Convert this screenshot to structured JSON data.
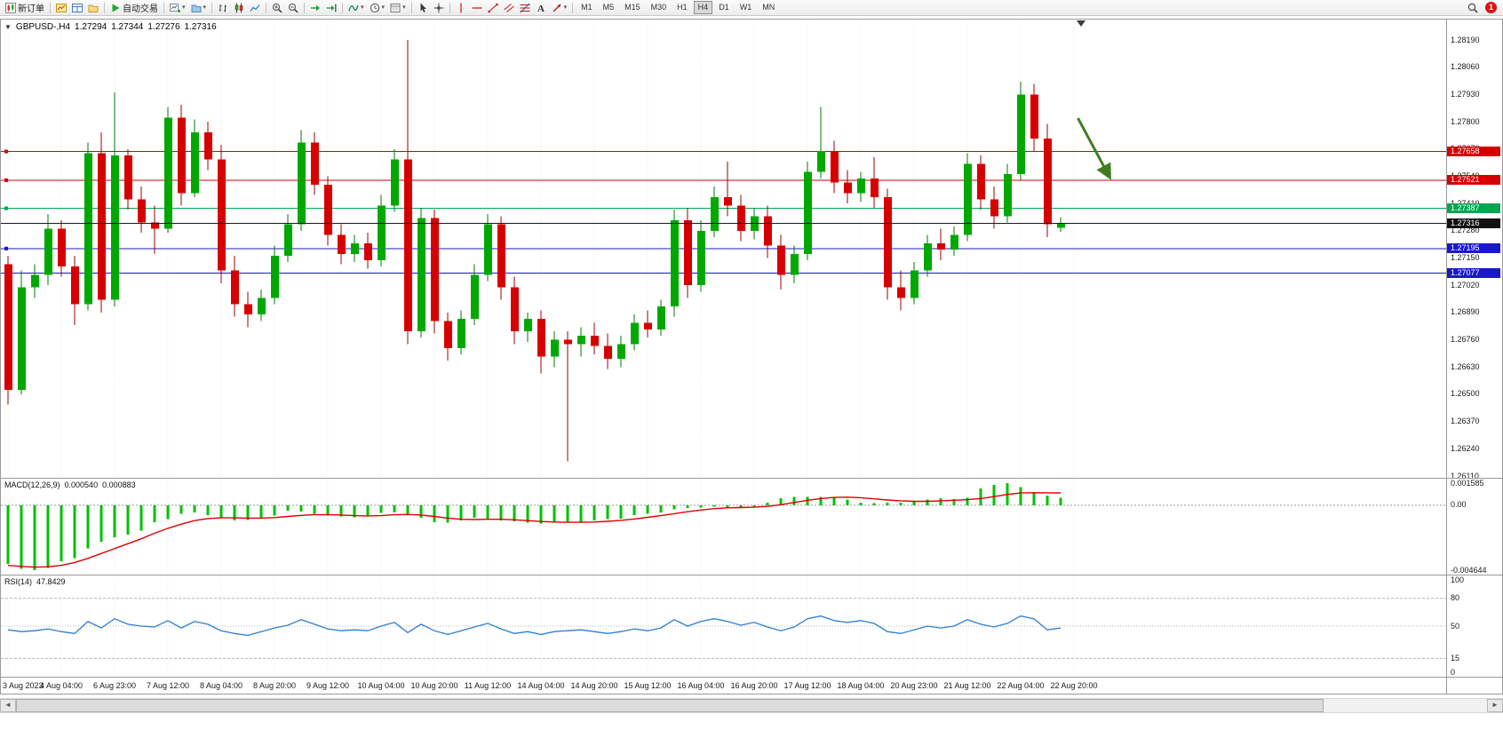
{
  "toolbar": {
    "items": [
      {
        "kind": "button",
        "name": "new-order-button",
        "icon": "new-order-icon",
        "label": "新订单"
      },
      {
        "kind": "sep"
      },
      {
        "kind": "button",
        "name": "market-watch-button",
        "icon": "market-watch-icon"
      },
      {
        "kind": "button",
        "name": "data-window-button",
        "icon": "data-window-icon"
      },
      {
        "kind": "button",
        "name": "navigator-button",
        "icon": "navigator-icon"
      },
      {
        "kind": "sep"
      },
      {
        "kind": "button",
        "name": "auto-trading-button",
        "icon": "auto-trading-icon",
        "label": "自动交易"
      },
      {
        "kind": "sep"
      },
      {
        "kind": "button",
        "name": "new-chart-button",
        "icon": "new-chart-icon",
        "caret": true
      },
      {
        "kind": "button",
        "name": "profiles-button",
        "icon": "profiles-icon",
        "caret": true
      },
      {
        "kind": "sep"
      },
      {
        "kind": "button",
        "name": "bar-chart-button",
        "icon": "bars-icon"
      },
      {
        "kind": "button",
        "name": "candlestick-chart-button",
        "icon": "candles-icon"
      },
      {
        "kind": "button",
        "name": "line-chart-button",
        "icon": "line-chart-icon"
      },
      {
        "kind": "sep"
      },
      {
        "kind": "button",
        "name": "zoom-in-button",
        "icon": "zoom-in-icon"
      },
      {
        "kind": "button",
        "name": "zoom-out-button",
        "icon": "zoom-out-icon"
      },
      {
        "kind": "sep"
      },
      {
        "kind": "button",
        "name": "auto-scroll-button",
        "icon": "auto-scroll-icon"
      },
      {
        "kind": "button",
        "name": "chart-shift-button",
        "icon": "chart-shift-icon"
      },
      {
        "kind": "sep"
      },
      {
        "kind": "button",
        "name": "indicators-button",
        "icon": "indicators-icon",
        "caret": true
      },
      {
        "kind": "button",
        "name": "periods-button",
        "icon": "periods-icon",
        "caret": true
      },
      {
        "kind": "button",
        "name": "templates-button",
        "icon": "templates-icon",
        "caret": true
      },
      {
        "kind": "sep"
      },
      {
        "kind": "button",
        "name": "cursor-button",
        "icon": "cursor-icon"
      },
      {
        "kind": "button",
        "name": "crosshair-button",
        "icon": "crosshair-icon"
      },
      {
        "kind": "sep"
      },
      {
        "kind": "button",
        "name": "vertical-line-button",
        "icon": "vertical-line-icon"
      },
      {
        "kind": "button",
        "name": "horizontal-line-button",
        "icon": "horizontal-line-icon"
      },
      {
        "kind": "button",
        "name": "trendline-button",
        "icon": "trendline-icon"
      },
      {
        "kind": "button",
        "name": "equidistant-channel-button",
        "icon": "channel-icon"
      },
      {
        "kind": "button",
        "name": "fibonacci-button",
        "icon": "fibonacci-icon"
      },
      {
        "kind": "button",
        "name": "text-button",
        "icon": "text-icon"
      },
      {
        "kind": "button",
        "name": "arrows-button",
        "icon": "arrows-icon",
        "caret": true
      },
      {
        "kind": "sep"
      }
    ],
    "timeframes": [
      "M1",
      "M5",
      "M15",
      "M30",
      "H1",
      "H4",
      "D1",
      "W1",
      "MN"
    ],
    "active_timeframe": "H4",
    "notification_count": "1"
  },
  "chart": {
    "header": {
      "collapse_arrow": "▼",
      "symbol": "GBPUSD-,H4",
      "open": "1.27294",
      "high": "1.27344",
      "low": "1.27276",
      "close": "1.27316"
    }
  },
  "scrollbar": {
    "left_arrow": "◄",
    "right_arrow": "►"
  },
  "chart_data": {
    "type": "candlestick",
    "symbol": "GBPUSD-",
    "timeframe": "H4",
    "colors": {
      "up": "#00a800",
      "up_dark": "#007a00",
      "down": "#d60000",
      "down_dark": "#9c0000",
      "grid": "#ececec",
      "bid_line": "#1a1a1a"
    },
    "y_axis": {
      "ticks": [
        "1.28190",
        "1.28060",
        "1.27930",
        "1.27800",
        "1.27670",
        "1.27540",
        "1.27410",
        "1.27280",
        "1.27150",
        "1.27020",
        "1.26890",
        "1.26760",
        "1.26630",
        "1.26500",
        "1.26370",
        "1.26240",
        "1.26110"
      ]
    },
    "x_labels": [
      "3 Aug 2023",
      "4 Aug 04:00",
      "6 Aug 23:00",
      "7 Aug 12:00",
      "8 Aug 04:00",
      "8 Aug 20:00",
      "9 Aug 12:00",
      "10 Aug 04:00",
      "10 Aug 20:00",
      "11 Aug 12:00",
      "14 Aug 04:00",
      "14 Aug 20:00",
      "15 Aug 12:00",
      "16 Aug 04:00",
      "16 Aug 20:00",
      "17 Aug 12:00",
      "18 Aug 04:00",
      "20 Aug 23:00",
      "21 Aug 12:00",
      "22 Aug 04:00",
      "22 Aug 20:00"
    ],
    "current_price": 1.27316,
    "h_lines": [
      {
        "price": 1.27658,
        "color": "#d40000",
        "name": "resistance-line-1"
      },
      {
        "price": 1.27521,
        "color": "#d40000",
        "name": "resistance-line-2"
      },
      {
        "price": 1.27387,
        "color": "#00a651",
        "name": "pivot-line"
      },
      {
        "price": 1.27195,
        "color": "#1919c8",
        "name": "support-line-1"
      },
      {
        "price": 1.27077,
        "color": "#1919c8",
        "name": "support-line-2"
      }
    ],
    "arrow": {
      "x1_bar": 80.3,
      "y1_price": 1.27817,
      "x2_bar": 82.7,
      "y2_price": 1.27533,
      "color": "#3f7d20"
    },
    "candles": [
      [
        1.2712,
        1.2716,
        1.2645,
        1.2652
      ],
      [
        1.2652,
        1.2709,
        1.265,
        1.2701
      ],
      [
        1.2701,
        1.2712,
        1.2696,
        1.2707
      ],
      [
        1.2707,
        1.2736,
        1.2702,
        1.2729
      ],
      [
        1.2729,
        1.2733,
        1.2706,
        1.2711
      ],
      [
        1.2711,
        1.2716,
        1.2683,
        1.2693
      ],
      [
        1.2693,
        1.277,
        1.269,
        1.2765
      ],
      [
        1.2765,
        1.2775,
        1.2689,
        1.2695
      ],
      [
        1.2695,
        1.2794,
        1.2692,
        1.2764
      ],
      [
        1.2764,
        1.2767,
        1.2738,
        1.2743
      ],
      [
        1.2743,
        1.2749,
        1.2727,
        1.2732
      ],
      [
        1.2732,
        1.274,
        1.2717,
        1.2729
      ],
      [
        1.2729,
        1.2787,
        1.2727,
        1.2782
      ],
      [
        1.2782,
        1.2788,
        1.274,
        1.2746
      ],
      [
        1.2746,
        1.2781,
        1.2744,
        1.2775
      ],
      [
        1.2775,
        1.278,
        1.2757,
        1.2762
      ],
      [
        1.2762,
        1.2769,
        1.2703,
        1.2709
      ],
      [
        1.2709,
        1.2716,
        1.2687,
        1.2693
      ],
      [
        1.2693,
        1.2699,
        1.2682,
        1.2688
      ],
      [
        1.2688,
        1.27,
        1.2685,
        1.2696
      ],
      [
        1.2696,
        1.2721,
        1.2693,
        1.2716
      ],
      [
        1.2716,
        1.2736,
        1.2713,
        1.2731
      ],
      [
        1.2731,
        1.2776,
        1.2728,
        1.277
      ],
      [
        1.277,
        1.2775,
        1.2745,
        1.275
      ],
      [
        1.275,
        1.2754,
        1.2721,
        1.2726
      ],
      [
        1.2726,
        1.2731,
        1.2712,
        1.2717
      ],
      [
        1.2717,
        1.2726,
        1.2713,
        1.2722
      ],
      [
        1.2722,
        1.2727,
        1.271,
        1.2714
      ],
      [
        1.2714,
        1.2745,
        1.2711,
        1.274
      ],
      [
        1.274,
        1.2767,
        1.2737,
        1.2762
      ],
      [
        1.2762,
        1.2819,
        1.2674,
        1.268
      ],
      [
        1.268,
        1.2739,
        1.2677,
        1.2734
      ],
      [
        1.2734,
        1.2738,
        1.2679,
        1.2685
      ],
      [
        1.2685,
        1.2689,
        1.2666,
        1.2672
      ],
      [
        1.2672,
        1.269,
        1.2669,
        1.2686
      ],
      [
        1.2686,
        1.2712,
        1.2683,
        1.2707
      ],
      [
        1.2707,
        1.2736,
        1.2704,
        1.2731
      ],
      [
        1.2731,
        1.2735,
        1.2695,
        1.2701
      ],
      [
        1.2701,
        1.2706,
        1.2674,
        1.268
      ],
      [
        1.268,
        1.2689,
        1.2675,
        1.2686
      ],
      [
        1.2686,
        1.269,
        1.266,
        1.2668
      ],
      [
        1.2668,
        1.268,
        1.2663,
        1.2676
      ],
      [
        1.2676,
        1.268,
        1.2618,
        1.2674
      ],
      [
        1.2674,
        1.2682,
        1.2668,
        1.2678
      ],
      [
        1.2678,
        1.2684,
        1.2669,
        1.2673
      ],
      [
        1.2673,
        1.2679,
        1.2662,
        1.2667
      ],
      [
        1.2667,
        1.2678,
        1.2663,
        1.2674
      ],
      [
        1.2674,
        1.2688,
        1.2671,
        1.2684
      ],
      [
        1.2684,
        1.269,
        1.2677,
        1.2681
      ],
      [
        1.2681,
        1.2695,
        1.2678,
        1.2692
      ],
      [
        1.2692,
        1.2738,
        1.2687,
        1.2733
      ],
      [
        1.2733,
        1.2739,
        1.2696,
        1.2702
      ],
      [
        1.2702,
        1.2733,
        1.2699,
        1.2728
      ],
      [
        1.2728,
        1.2749,
        1.2725,
        1.2744
      ],
      [
        1.2744,
        1.2761,
        1.2735,
        1.274
      ],
      [
        1.274,
        1.2745,
        1.2723,
        1.2728
      ],
      [
        1.2728,
        1.2739,
        1.2724,
        1.2735
      ],
      [
        1.2735,
        1.274,
        1.2715,
        1.2721
      ],
      [
        1.2721,
        1.2726,
        1.27,
        1.2707
      ],
      [
        1.2707,
        1.2721,
        1.2703,
        1.2717
      ],
      [
        1.2717,
        1.2761,
        1.2714,
        1.2756
      ],
      [
        1.2756,
        1.2787,
        1.2753,
        1.2766
      ],
      [
        1.2766,
        1.2771,
        1.2746,
        1.2751
      ],
      [
        1.2751,
        1.2757,
        1.2741,
        1.2746
      ],
      [
        1.2746,
        1.2756,
        1.2742,
        1.2753
      ],
      [
        1.2753,
        1.2763,
        1.2739,
        1.2744
      ],
      [
        1.2744,
        1.2748,
        1.2695,
        1.2701
      ],
      [
        1.2701,
        1.2709,
        1.269,
        1.2696
      ],
      [
        1.2696,
        1.2713,
        1.2693,
        1.2709
      ],
      [
        1.2709,
        1.2726,
        1.2706,
        1.2722
      ],
      [
        1.2722,
        1.2729,
        1.2714,
        1.2719
      ],
      [
        1.2719,
        1.273,
        1.2716,
        1.2726
      ],
      [
        1.2726,
        1.2765,
        1.2723,
        1.276
      ],
      [
        1.276,
        1.2764,
        1.2738,
        1.2743
      ],
      [
        1.2743,
        1.2749,
        1.2729,
        1.2735
      ],
      [
        1.2735,
        1.276,
        1.2732,
        1.2755
      ],
      [
        1.2755,
        1.2799,
        1.2752,
        1.2793
      ],
      [
        1.2793,
        1.2798,
        1.2766,
        1.2772
      ],
      [
        1.2772,
        1.2779,
        1.2725,
        1.2731
      ],
      [
        1.27294,
        1.27344,
        1.27276,
        1.27316
      ]
    ],
    "macd": {
      "label": "MACD(12,26,9)",
      "value1": "0.000540",
      "value2": "0.000883",
      "max": 0.001585,
      "min": -0.004644,
      "scale_ticks": [
        "0.001585",
        "0.00",
        "-0.004644"
      ],
      "histogram_color": "#00c000",
      "signal_color": "#e00000",
      "histogram": [
        -0.0042,
        -0.00455,
        -0.004644,
        -0.0045,
        -0.004,
        -0.0038,
        -0.0031,
        -0.0026,
        -0.0023,
        -0.0021,
        -0.0018,
        -0.0012,
        -0.001,
        -0.0006,
        -0.0005,
        -0.0007,
        -0.0009,
        -0.0011,
        -0.00105,
        -0.0009,
        -0.00075,
        -0.0004,
        -0.00045,
        -0.0006,
        -0.00075,
        -0.0008,
        -0.00085,
        -0.00075,
        -0.00055,
        -0.0005,
        -0.0007,
        -0.0009,
        -0.0012,
        -0.00125,
        -0.0011,
        -0.0009,
        -0.00095,
        -0.0011,
        -0.00115,
        -0.00125,
        -0.0013,
        -0.00125,
        -0.0012,
        -0.0012,
        -0.0011,
        -0.001,
        -0.00095,
        -0.0007,
        -0.0006,
        -0.0005,
        -0.0003,
        -0.0002,
        -0.00015,
        -0.0001,
        -0.00015,
        -0.0002,
        -0.0001,
        0.0002,
        0.0005,
        0.0006,
        0.0006,
        0.0006,
        0.0006,
        0.0004,
        0.0002,
        0.00015,
        0.0002,
        0.0002,
        0.00025,
        0.0004,
        0.0005,
        0.00045,
        0.00055,
        0.0012,
        0.00145,
        0.001585,
        0.0013,
        0.00095,
        0.0007,
        0.00054
      ],
      "signal": [
        -0.0043,
        -0.00438,
        -0.00443,
        -0.0044,
        -0.0043,
        -0.0041,
        -0.0038,
        -0.00345,
        -0.0031,
        -0.00275,
        -0.0024,
        -0.002,
        -0.00165,
        -0.00135,
        -0.0011,
        -0.00095,
        -0.0009,
        -0.0009,
        -0.00092,
        -0.00092,
        -0.00088,
        -0.0008,
        -0.00072,
        -0.00068,
        -0.00068,
        -0.0007,
        -0.00074,
        -0.00076,
        -0.00074,
        -0.00068,
        -0.00066,
        -0.0007,
        -0.0008,
        -0.00092,
        -0.001,
        -0.00102,
        -0.001,
        -0.001,
        -0.00104,
        -0.0011,
        -0.00116,
        -0.0012,
        -0.00122,
        -0.00122,
        -0.0012,
        -0.00115,
        -0.00108,
        -0.00098,
        -0.00086,
        -0.00074,
        -0.0006,
        -0.00046,
        -0.00034,
        -0.00024,
        -0.00018,
        -0.00016,
        -0.00014,
        -8e-05,
        4e-05,
        0.0002,
        0.00036,
        0.00048,
        0.00056,
        0.00058,
        0.00054,
        0.00046,
        0.00038,
        0.00032,
        0.00028,
        0.00028,
        0.00032,
        0.00036,
        0.0004,
        0.00048,
        0.00062,
        0.00078,
        0.00088,
        0.0009,
        0.00089,
        0.000883
      ]
    },
    "rsi": {
      "label": "RSI(14)",
      "value": "47.8429",
      "line_color": "#2d7fd0",
      "scale_ticks": [
        "100",
        "80",
        "50",
        "15",
        "0"
      ],
      "levels": [
        80,
        50,
        15
      ],
      "values": [
        46,
        44,
        45,
        47,
        44,
        42,
        55,
        48,
        58,
        52,
        50,
        49,
        56,
        48,
        55,
        52,
        45,
        42,
        40,
        44,
        48,
        51,
        57,
        52,
        47,
        45,
        46,
        45,
        50,
        54,
        43,
        52,
        45,
        41,
        45,
        49,
        53,
        47,
        42,
        44,
        41,
        44,
        45,
        46,
        44,
        42,
        44,
        47,
        45,
        48,
        57,
        50,
        55,
        58,
        55,
        51,
        54,
        49,
        45,
        49,
        58,
        61,
        56,
        54,
        56,
        53,
        44,
        42,
        46,
        50,
        48,
        50,
        57,
        52,
        49,
        53,
        61,
        58,
        46,
        47.84
      ]
    }
  }
}
